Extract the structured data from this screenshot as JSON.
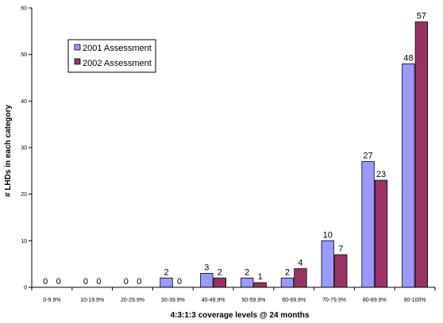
{
  "chart_data": {
    "type": "bar",
    "title": "",
    "xlabel": "4:3:1:3 coverage levels @ 24 months",
    "ylabel": "# LHDs in each category",
    "ylim": [
      0,
      60
    ],
    "yticks": [
      0,
      10,
      20,
      30,
      40,
      50,
      60
    ],
    "grid": false,
    "legend_position": "top-left",
    "categories": [
      "0-9.9%",
      "10-19.9%",
      "20-29.9%",
      "30-39.9%",
      "40-49.9%",
      "50-59.9%",
      "60-69.9%",
      "70-79.9%",
      "80-89.9%",
      "90-100%"
    ],
    "series": [
      {
        "name": "2001 Assessment",
        "color": "#9999ff",
        "values": [
          0,
          0,
          0,
          2,
          3,
          2,
          2,
          10,
          27,
          48
        ]
      },
      {
        "name": "2002 Assessment",
        "color": "#993366",
        "values": [
          0,
          0,
          0,
          0,
          2,
          1,
          4,
          7,
          23,
          57
        ]
      }
    ]
  }
}
